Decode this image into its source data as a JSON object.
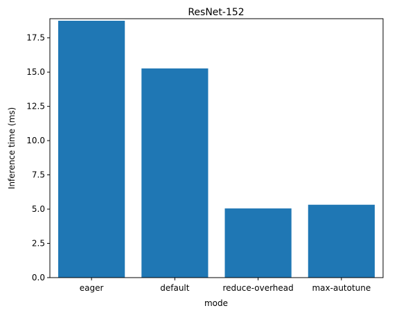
{
  "chart_data": {
    "type": "bar",
    "title": "ResNet-152",
    "xlabel": "mode",
    "ylabel": "Inference time (ms)",
    "categories": [
      "eager",
      "default",
      "reduce-overhead",
      "max-autotune"
    ],
    "values": [
      18.75,
      15.27,
      5.05,
      5.32
    ],
    "ylim": [
      0,
      18.9
    ],
    "yticks": [
      0.0,
      2.5,
      5.0,
      7.5,
      10.0,
      12.5,
      15.0,
      17.5
    ],
    "ytick_labels": [
      "0.0",
      "2.5",
      "5.0",
      "7.5",
      "10.0",
      "12.5",
      "15.0",
      "17.5"
    ],
    "bar_color": "#1f77b4",
    "grid": false,
    "legend": "none"
  }
}
